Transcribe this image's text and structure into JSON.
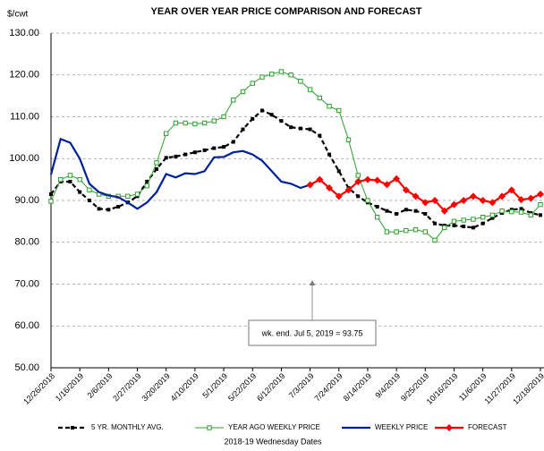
{
  "chart_data": {
    "type": "line",
    "title": "YEAR OVER YEAR PRICE COMPARISON AND FORECAST",
    "y_label": "$/cwt",
    "x_label": "2018-19 Wednesday Dates",
    "annotation": "wk. end. Jul 5, 2019  = 93.75",
    "categories": [
      "12/26/2018",
      null,
      null,
      "1/16/2019",
      null,
      null,
      "2/6/2019",
      null,
      null,
      "2/27/2019",
      null,
      null,
      "3/20/2019",
      null,
      null,
      "4/10/2019",
      null,
      null,
      "5/1/2019",
      null,
      null,
      "5/22/2019",
      null,
      null,
      "6/12/2019",
      null,
      null,
      "7/3/2019",
      null,
      null,
      "7/24/2019",
      null,
      null,
      "8/14/2019",
      null,
      null,
      "9/4/2019",
      null,
      null,
      "9/25/2019",
      null,
      null,
      "10/16/2019",
      null,
      null,
      "11/6/2019",
      null,
      null,
      "11/27/2019",
      null,
      null,
      "12/18/2019"
    ],
    "series": [
      {
        "name": "5 YR. MONTHLY AVG.",
        "color": "#000000",
        "style": "dashed",
        "marker": "square-filled",
        "values": [
          91.5,
          94.5,
          94.5,
          92,
          90,
          88,
          87.8,
          88.5,
          89.5,
          91,
          94.5,
          97.5,
          100.2,
          100.5,
          101,
          101.5,
          102,
          102.5,
          102.8,
          104,
          107,
          109.5,
          111.5,
          110.5,
          109,
          107.5,
          107.2,
          107,
          105.5,
          101,
          97,
          93,
          91,
          89.5,
          88.5,
          87.5,
          86.8,
          87.8,
          87.5,
          86.8,
          84.5,
          84,
          84,
          83.8,
          83.5,
          84.5,
          85.8,
          87,
          87.8,
          88,
          87,
          86.5
        ]
      },
      {
        "name": "YEAR AGO WEEKLY PRICE",
        "color": "#2ca02c",
        "style": "solid",
        "marker": "square-open",
        "values": [
          89.8,
          95,
          96,
          95,
          92.5,
          91.5,
          91,
          91,
          91,
          91.5,
          93.5,
          99,
          106,
          108.5,
          108.5,
          108.3,
          108.5,
          109,
          110,
          114,
          116,
          118,
          119.5,
          120.2,
          120.8,
          120,
          118.5,
          116.5,
          114.5,
          112.5,
          111.5,
          104.5,
          96,
          90,
          86,
          82.5,
          82.5,
          82.8,
          83,
          82.5,
          80.5,
          83.5,
          85,
          85.3,
          85.5,
          86,
          86.5,
          87.5,
          87.3,
          87.2,
          86.5,
          89
        ]
      },
      {
        "name": "WEEKLY PRICE",
        "color": "#00209f",
        "style": "thick",
        "marker": "none",
        "values": [
          96.2,
          104.7,
          103.8,
          100,
          94,
          92,
          91.2,
          90.8,
          89.5,
          88,
          89.5,
          92,
          96.3,
          95.5,
          96.5,
          96.3,
          97,
          100.3,
          100.4,
          101.5,
          101.8,
          101,
          99.5,
          97,
          94.5,
          94,
          93,
          93.75,
          null,
          null,
          null,
          null,
          null,
          null,
          null,
          null,
          null,
          null,
          null,
          null,
          null,
          null,
          null,
          null,
          null,
          null,
          null,
          null,
          null,
          null,
          null,
          null
        ]
      },
      {
        "name": "FORECAST",
        "color": "#ff0000",
        "style": "thick",
        "marker": "diamond",
        "values": [
          null,
          null,
          null,
          null,
          null,
          null,
          null,
          null,
          null,
          null,
          null,
          null,
          null,
          null,
          null,
          null,
          null,
          null,
          null,
          null,
          null,
          null,
          null,
          null,
          null,
          null,
          null,
          93.75,
          95,
          93,
          91,
          92.5,
          94.5,
          95,
          94.8,
          93.8,
          95.2,
          92.5,
          91,
          89.5,
          90,
          87.5,
          89,
          90,
          91,
          90,
          89.5,
          91,
          92.5,
          90.2,
          90.5,
          91.5
        ]
      }
    ],
    "ylim": [
      50,
      130
    ],
    "yticks": [
      {
        "value": 50,
        "label": "50.00"
      },
      {
        "value": 60,
        "label": "60.00"
      },
      {
        "value": 70,
        "label": "70.00"
      },
      {
        "value": 80,
        "label": "80.00"
      },
      {
        "value": 90,
        "label": "90.00"
      },
      {
        "value": 100,
        "label": "100.00"
      },
      {
        "value": 110,
        "label": "110.00"
      },
      {
        "value": 120,
        "label": "120.00"
      },
      {
        "value": 130,
        "label": "130.00"
      }
    ],
    "grid": true,
    "legend": "bottom"
  }
}
